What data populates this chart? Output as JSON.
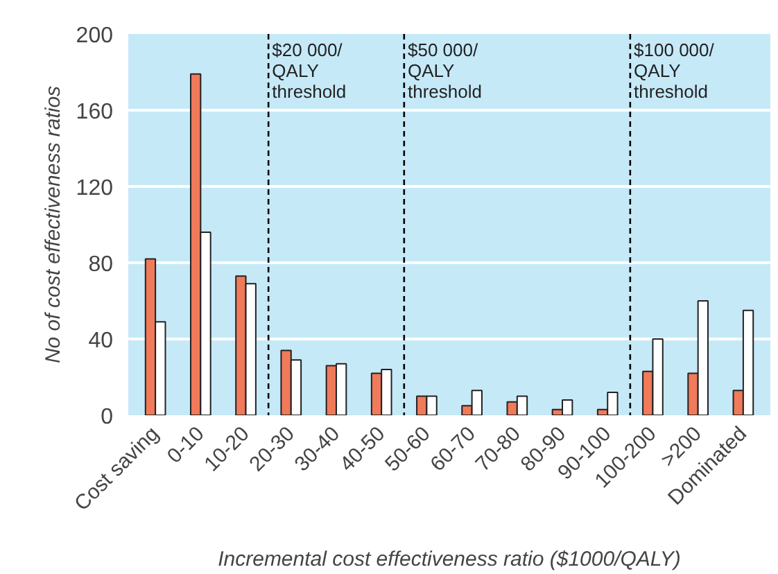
{
  "chart_data": {
    "type": "bar",
    "xlabel": "Incremental cost effectiveness ratio ($1000/QALY)",
    "ylabel": "No of cost effectiveness ratios",
    "categories": [
      "Cost saving",
      "0-10",
      "10-20",
      "20-30",
      "30-40",
      "40-50",
      "50-60",
      "60-70",
      "70-80",
      "80-90",
      "90-100",
      "100-200",
      ">200",
      "Dominated"
    ],
    "series": [
      {
        "color": "#f07a5a",
        "values": [
          82,
          179,
          73,
          34,
          26,
          22,
          10,
          5,
          7,
          3,
          3,
          23,
          22,
          13
        ]
      },
      {
        "color": "#ffffff",
        "values": [
          49,
          96,
          69,
          29,
          27,
          24,
          10,
          13,
          10,
          8,
          12,
          40,
          60,
          55
        ]
      }
    ],
    "ylim": [
      0,
      200
    ],
    "yticks": [
      0,
      40,
      80,
      120,
      160,
      200
    ],
    "grid": "y",
    "annotations": [
      "$20 000/\nQALY\nthreshold",
      "$50 000/\nQALY\nthreshold",
      "$100 000/\nQALY\nthreshold"
    ]
  }
}
